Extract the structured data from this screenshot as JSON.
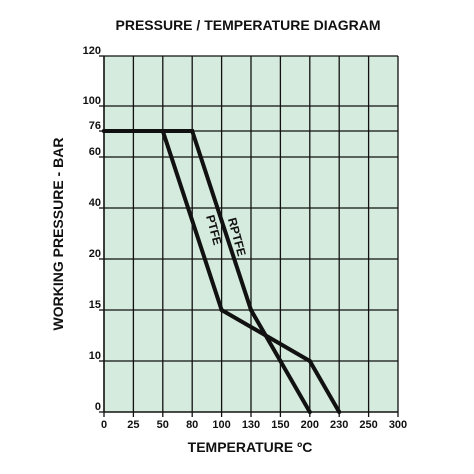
{
  "chart_data": {
    "type": "line",
    "title": "PRESSURE / TEMPERATURE DIAGRAM",
    "xlabel": "TEMPERATURE ºC",
    "ylabel": "WORKING PRESSURE - BAR",
    "x_ticks": [
      "0",
      "25",
      "50",
      "80",
      "100",
      "130",
      "150",
      "200",
      "230",
      "250",
      "300"
    ],
    "y_ticks": [
      "0",
      "10",
      "15",
      "20",
      "40",
      "60",
      "76",
      "100",
      "120"
    ],
    "background_color": "#d5ebdd",
    "line_color": "#111111",
    "grid": true,
    "series": [
      {
        "name": "PTFE",
        "points": [
          {
            "x": "0",
            "y": "76"
          },
          {
            "x": "50",
            "y": "76"
          },
          {
            "x": "100",
            "y": "15"
          },
          {
            "x": "200",
            "y": "10"
          },
          {
            "x": "230",
            "y": "0"
          }
        ]
      },
      {
        "name": "RPTFE",
        "points": [
          {
            "x": "0",
            "y": "76"
          },
          {
            "x": "80",
            "y": "76"
          },
          {
            "x": "130",
            "y": "15"
          },
          {
            "x": "150",
            "y": "10"
          },
          {
            "x": "200",
            "y": "0"
          }
        ]
      }
    ]
  }
}
